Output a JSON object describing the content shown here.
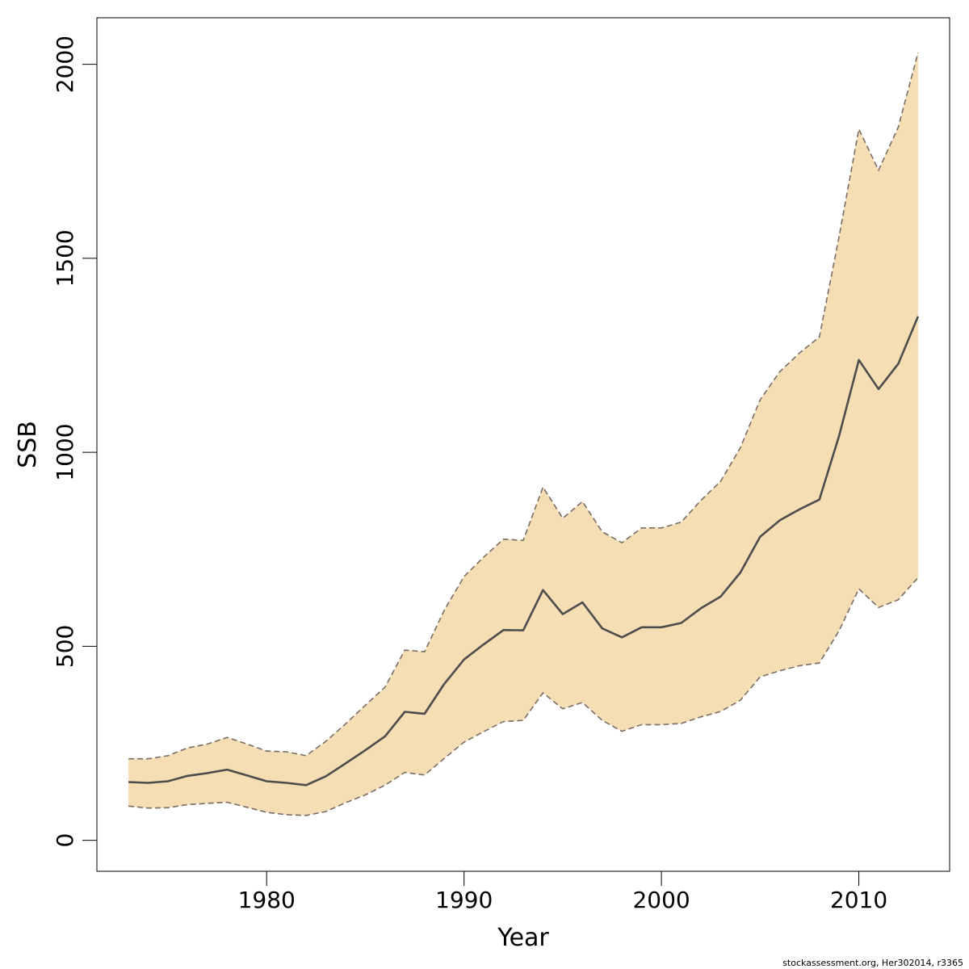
{
  "chart_data": {
    "type": "area",
    "title": "",
    "xlabel": "Year",
    "ylabel": "SSB",
    "xlim": [
      1971.4,
      2014.6
    ],
    "ylim": [
      -80,
      2120
    ],
    "x_ticks": [
      1980,
      1990,
      2000,
      2010
    ],
    "y_ticks": [
      0,
      500,
      1000,
      1500,
      2000
    ],
    "grid": false,
    "legend": "none",
    "colors": {
      "band": "#F5DEB3",
      "line": "#4d4d4d",
      "bound": "#7a6d66"
    },
    "x": [
      1973,
      1974,
      1975,
      1976,
      1977,
      1978,
      1979,
      1980,
      1981,
      1982,
      1983,
      1984,
      1985,
      1986,
      1987,
      1988,
      1989,
      1990,
      1991,
      1992,
      1993,
      1994,
      1995,
      1996,
      1997,
      1998,
      1999,
      2000,
      2001,
      2002,
      2003,
      2004,
      2005,
      2006,
      2007,
      2008,
      2009,
      2010,
      2011,
      2012,
      2013
    ],
    "series": [
      {
        "name": "",
        "role": "estimate",
        "values": [
          150,
          148,
          152,
          166,
          173,
          182,
          167,
          152,
          148,
          142,
          165,
          198,
          232,
          268,
          331,
          326,
          403,
          466,
          505,
          542,
          541,
          645,
          583,
          613,
          546,
          523,
          549,
          549,
          560,
          598,
          628,
          690,
          782,
          825,
          853,
          878,
          1042,
          1238,
          1163,
          1228,
          1350
        ]
      },
      {
        "name": "",
        "role": "upper",
        "values": [
          210,
          210,
          218,
          238,
          248,
          265,
          248,
          230,
          228,
          218,
          255,
          300,
          348,
          395,
          490,
          486,
          593,
          680,
          730,
          776,
          773,
          910,
          830,
          873,
          795,
          767,
          805,
          805,
          820,
          876,
          925,
          1012,
          1135,
          1208,
          1256,
          1297,
          1556,
          1833,
          1727,
          1838,
          2030
        ]
      },
      {
        "name": "",
        "role": "lower",
        "values": [
          88,
          83,
          84,
          92,
          95,
          98,
          85,
          72,
          66,
          64,
          74,
          97,
          117,
          142,
          175,
          168,
          211,
          253,
          280,
          306,
          309,
          380,
          339,
          355,
          309,
          281,
          298,
          298,
          301,
          318,
          332,
          361,
          421,
          437,
          450,
          457,
          540,
          648,
          600,
          620,
          677
        ]
      }
    ]
  },
  "footer": {
    "credit": "stockassessment.org, Her302014, r3365"
  }
}
